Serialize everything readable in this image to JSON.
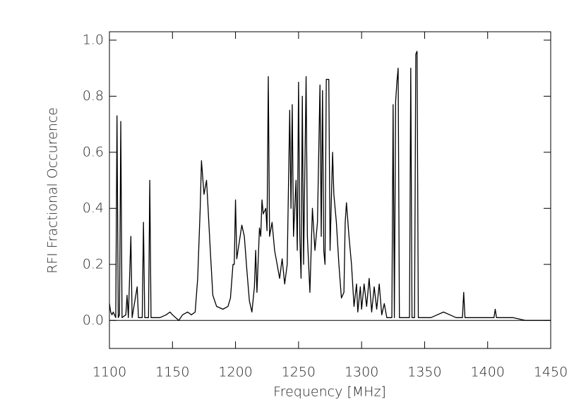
{
  "chart_data": {
    "type": "line",
    "x_label": "Frequency [MHz]",
    "y_label": "RFI Fractional Occurence",
    "x": [
      1100,
      1101,
      1102,
      1103,
      1104,
      1105,
      1106,
      1107,
      1108,
      1109,
      1110,
      1113,
      1114,
      1115,
      1117,
      1118,
      1122,
      1123,
      1126,
      1127,
      1128,
      1131,
      1132,
      1133,
      1140,
      1145,
      1148,
      1150,
      1155,
      1158,
      1162,
      1165,
      1168,
      1170,
      1172,
      1173,
      1175,
      1177,
      1178,
      1180,
      1182,
      1185,
      1190,
      1194,
      1196,
      1198,
      1199,
      1200,
      1201,
      1203,
      1205,
      1207,
      1209,
      1211,
      1213,
      1215,
      1216,
      1217,
      1219,
      1220,
      1221,
      1222,
      1224,
      1225,
      1226,
      1227,
      1229,
      1231,
      1233,
      1235,
      1237,
      1239,
      1241,
      1243,
      1244,
      1245,
      1246,
      1248,
      1249,
      1250,
      1251,
      1252,
      1253,
      1254,
      1256,
      1257,
      1259,
      1261,
      1263,
      1265,
      1267,
      1268,
      1269,
      1270,
      1271,
      1272,
      1274,
      1275,
      1277,
      1278,
      1280,
      1282,
      1284,
      1286,
      1287,
      1288,
      1290,
      1292,
      1294,
      1296,
      1297,
      1299,
      1300,
      1302,
      1304,
      1306,
      1308,
      1310,
      1312,
      1314,
      1316,
      1318,
      1320,
      1324,
      1325,
      1326,
      1327,
      1328,
      1329,
      1330,
      1333,
      1338,
      1339,
      1340,
      1342,
      1343,
      1344,
      1345,
      1350,
      1355,
      1360,
      1365,
      1370,
      1375,
      1380,
      1381,
      1382,
      1390,
      1400,
      1405,
      1406,
      1407,
      1420,
      1430,
      1450
    ],
    "series": [
      {
        "color": "#000000",
        "values": [
          0.06,
          0.03,
          0.02,
          0.03,
          0.02,
          0.01,
          0.73,
          0.01,
          0.02,
          0.71,
          0.01,
          0.02,
          0.09,
          0.01,
          0.3,
          0.01,
          0.12,
          0.01,
          0.01,
          0.35,
          0.01,
          0.01,
          0.5,
          0.01,
          0.01,
          0.02,
          0.03,
          0.02,
          0.0,
          0.02,
          0.03,
          0.02,
          0.03,
          0.15,
          0.4,
          0.57,
          0.45,
          0.5,
          0.42,
          0.25,
          0.09,
          0.05,
          0.04,
          0.05,
          0.08,
          0.2,
          0.2,
          0.43,
          0.22,
          0.28,
          0.34,
          0.3,
          0.18,
          0.07,
          0.03,
          0.12,
          0.25,
          0.1,
          0.33,
          0.3,
          0.43,
          0.38,
          0.4,
          0.32,
          0.87,
          0.3,
          0.35,
          0.25,
          0.2,
          0.15,
          0.22,
          0.13,
          0.2,
          0.75,
          0.4,
          0.77,
          0.3,
          0.5,
          0.25,
          0.85,
          0.3,
          0.15,
          0.8,
          0.2,
          0.87,
          0.3,
          0.1,
          0.4,
          0.25,
          0.35,
          0.84,
          0.3,
          0.82,
          0.25,
          0.2,
          0.86,
          0.86,
          0.25,
          0.6,
          0.45,
          0.35,
          0.2,
          0.08,
          0.1,
          0.35,
          0.42,
          0.3,
          0.2,
          0.05,
          0.13,
          0.03,
          0.12,
          0.04,
          0.13,
          0.05,
          0.15,
          0.03,
          0.12,
          0.04,
          0.13,
          0.02,
          0.06,
          0.01,
          0.01,
          0.77,
          0.01,
          0.78,
          0.85,
          0.9,
          0.01,
          0.01,
          0.01,
          0.9,
          0.01,
          0.01,
          0.95,
          0.96,
          0.01,
          0.01,
          0.01,
          0.02,
          0.03,
          0.02,
          0.01,
          0.01,
          0.1,
          0.01,
          0.01,
          0.01,
          0.01,
          0.04,
          0.01,
          0.01,
          0.0,
          0.0
        ]
      }
    ],
    "xlim": [
      1100,
      1450
    ],
    "xticks": [
      1100,
      1150,
      1200,
      1250,
      1300,
      1350,
      1400,
      1450
    ],
    "ylim": [
      -0.1,
      1.03
    ],
    "yticks": [
      {
        "value": 0,
        "label": "0.0"
      },
      0.2,
      0.4,
      0.6,
      0.8,
      {
        "value": 1,
        "label": "1.0"
      }
    ],
    "baseline": 0
  }
}
